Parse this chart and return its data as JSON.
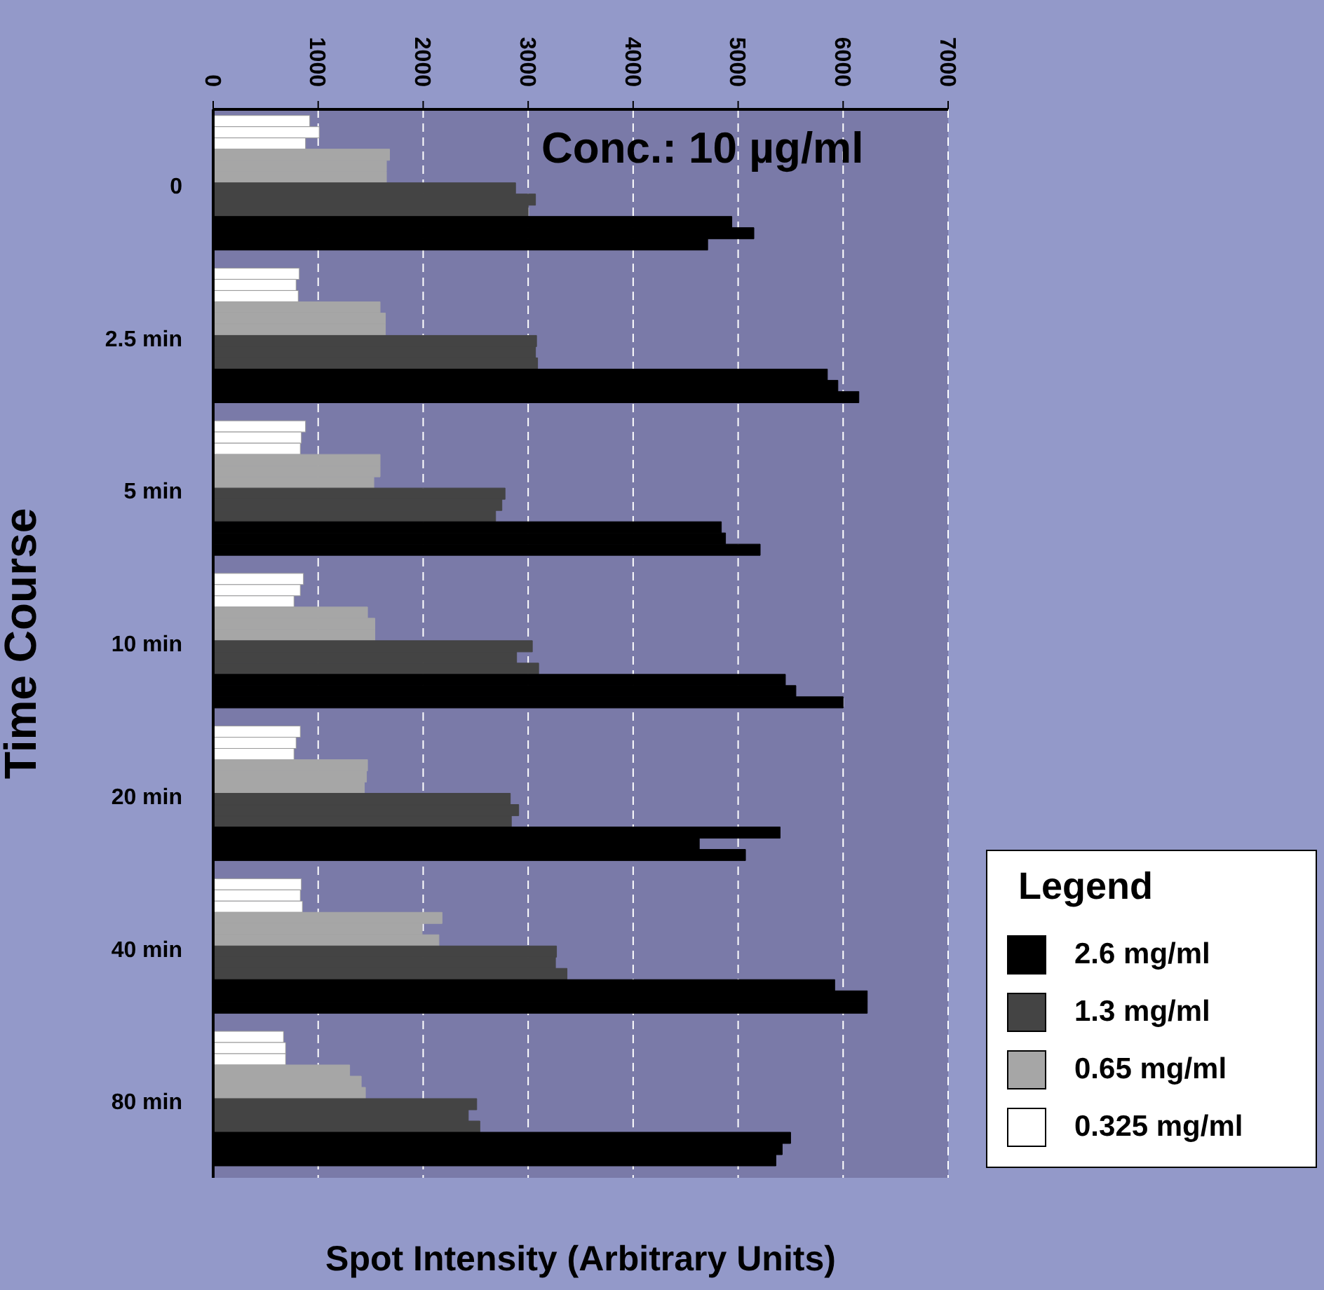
{
  "chart_data": {
    "type": "bar",
    "orientation": "horizontal",
    "annotations": [
      "Conc.: 10 µg/ml"
    ],
    "xlabel": "Spot Intensity (Arbitrary Units)",
    "ylabel": "Time Course",
    "legend_title": "Legend",
    "categories": [
      "0",
      "2.5 min",
      "5 min",
      "10 min",
      "20 min",
      "40 min",
      "80 min"
    ],
    "series": [
      {
        "name": "0.325 mg/ml",
        "color": "#ffffff",
        "values": [
          920,
          820,
          880,
          860,
          830,
          840,
          670
        ]
      },
      {
        "color": "#ffffff",
        "values": [
          1010,
          790,
          840,
          830,
          790,
          830,
          690
        ]
      },
      {
        "color": "#ffffff",
        "values": [
          880,
          810,
          830,
          770,
          770,
          850,
          690
        ]
      },
      {
        "name": "0.65 mg/ml",
        "color": "#a6a6a6",
        "values": [
          1680,
          1590,
          1590,
          1470,
          1470,
          2180,
          1300
        ]
      },
      {
        "color": "#a6a6a6",
        "values": [
          1650,
          1640,
          1590,
          1540,
          1460,
          1990,
          1410
        ]
      },
      {
        "color": "#a6a6a6",
        "values": [
          1650,
          1640,
          1530,
          1540,
          1440,
          2150,
          1450
        ]
      },
      {
        "name": "1.3 mg/ml",
        "color": "#444444",
        "values": [
          2880,
          3080,
          2780,
          3040,
          2830,
          3270,
          2510
        ]
      },
      {
        "color": "#444444",
        "values": [
          3070,
          3070,
          2750,
          2890,
          2910,
          3260,
          2430
        ]
      },
      {
        "color": "#444444",
        "values": [
          3000,
          3090,
          2690,
          3100,
          2840,
          3370,
          2540
        ]
      },
      {
        "name": "2.6 mg/ml",
        "color": "#000000",
        "values": [
          4940,
          5850,
          4840,
          5450,
          5400,
          5920,
          5500
        ]
      },
      {
        "color": "#000000",
        "values": [
          5150,
          5950,
          4880,
          5550,
          4630,
          6230,
          5420
        ]
      },
      {
        "color": "#000000",
        "values": [
          4710,
          6150,
          5210,
          6000,
          5070,
          6230,
          5360
        ]
      }
    ],
    "xlim": [
      0,
      7000
    ],
    "xticks": [
      0,
      1000,
      2000,
      3000,
      4000,
      5000,
      6000,
      7000
    ],
    "grid": "x",
    "legend": "bottom right"
  }
}
